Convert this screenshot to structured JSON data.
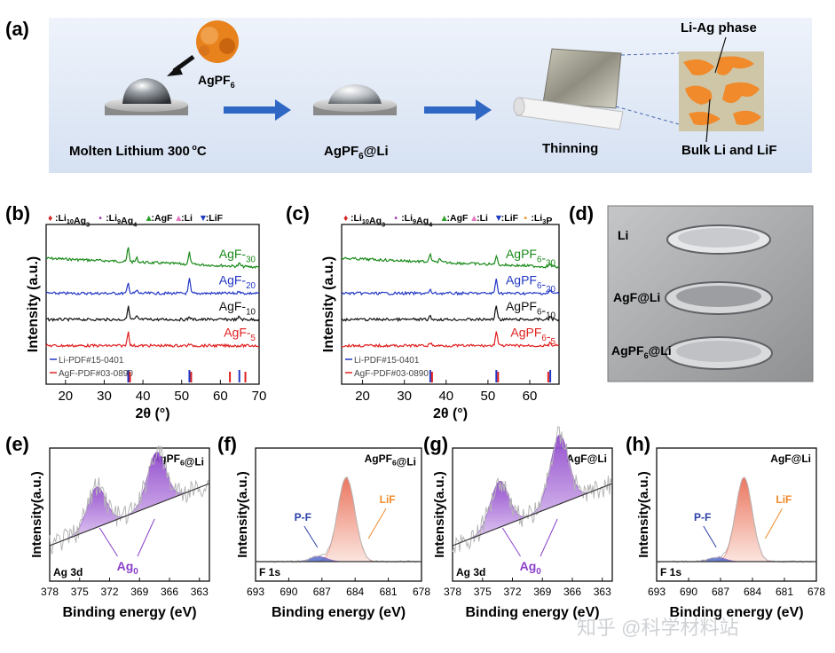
{
  "panel_a": {
    "label": "(a)",
    "powder_label": "AgPF",
    "powder_sub": "6",
    "step1": "Molten Lithium 300",
    "step1_unit": "C",
    "step2": "AgPF",
    "step2_sub": "6",
    "step2_suffix": "@Li",
    "step3": "Thinning",
    "phase_label": "Li-Ag phase",
    "bulk_label": "Bulk Li and LiF",
    "colors": {
      "bg": "#e3ebf7",
      "arrow": "#2f67c4",
      "powder": "#e8821c",
      "phase": "#f08a2a"
    }
  },
  "chart_data": [
    {
      "type": "line",
      "panel": "(b)",
      "xlabel": "2θ (°)",
      "ylabel": "Intensity (a.u.)",
      "xlim": [
        15,
        70
      ],
      "xticks": [
        20,
        30,
        40,
        50,
        60,
        70
      ],
      "legend": [
        {
          "symbol": "♦",
          "text": ":Li10Ag3",
          "color": "#d62728"
        },
        {
          "symbol": "•",
          "text": ":Li9Ag4",
          "color": "#9b2fae"
        },
        {
          "symbol": "▲",
          "text": ":AgF",
          "color": "#2ca02c"
        },
        {
          "symbol": "▲",
          "text": ":Li",
          "color": "#e377c2"
        },
        {
          "symbol": "▼",
          "text": ":LiF",
          "color": "#1f3bbf"
        }
      ],
      "series": [
        {
          "name": "AgF-30",
          "color": "#1a8a1a",
          "peaks": [
            [
              36.2,
              1.0
            ],
            [
              38.4,
              0.3
            ],
            [
              52.0,
              0.8
            ],
            [
              64.9,
              0.2
            ]
          ]
        },
        {
          "name": "AgF-20",
          "color": "#2237c4",
          "peaks": [
            [
              36.2,
              0.7
            ],
            [
              38.4,
              0.2
            ],
            [
              52.0,
              1.0
            ],
            [
              64.9,
              0.2
            ]
          ]
        },
        {
          "name": "AgF-10",
          "color": "#111111",
          "peaks": [
            [
              36.2,
              0.9
            ],
            [
              38.4,
              0.2
            ],
            [
              52.0,
              0.2
            ],
            [
              64.9,
              0.2
            ]
          ]
        },
        {
          "name": "AgF-5",
          "color": "#e02020",
          "peaks": [
            [
              36.2,
              1.0
            ],
            [
              52.0,
              0.1
            ]
          ]
        }
      ],
      "refs": [
        {
          "name": "Li-PDF#15-0401",
          "color": "#2237c4",
          "peaks": [
            36.2,
            52.0,
            64.9
          ]
        },
        {
          "name": "AgF-PDF#03-0890",
          "color": "#e02020",
          "peaks": [
            36.2,
            52.0,
            62.0,
            66.0
          ]
        }
      ]
    },
    {
      "type": "line",
      "panel": "(c)",
      "xlabel": "2θ (°)",
      "ylabel": "Intensity (a.u.)",
      "xlim": [
        15,
        67
      ],
      "xticks": [
        20,
        30,
        40,
        50,
        60
      ],
      "legend": [
        {
          "symbol": "♦",
          "text": ":Li10Ag3",
          "color": "#d62728"
        },
        {
          "symbol": "•",
          "text": ":Li9Ag4",
          "color": "#9b2fae"
        },
        {
          "symbol": "▲",
          "text": ":AgF",
          "color": "#2ca02c"
        },
        {
          "symbol": "▲",
          "text": ":Li",
          "color": "#e377c2"
        },
        {
          "symbol": "▼",
          "text": ":LiF",
          "color": "#1f3bbf"
        },
        {
          "symbol": "•",
          "text": ":Li3P",
          "color": "#f08a2a"
        }
      ],
      "series": [
        {
          "name": "AgPF6-30",
          "color": "#1a8a1a",
          "peaks": [
            [
              36.2,
              0.5
            ],
            [
              38.4,
              0.2
            ],
            [
              52.0,
              0.6
            ],
            [
              64.9,
              0.2
            ]
          ]
        },
        {
          "name": "AgPF6-20",
          "color": "#2237c4",
          "peaks": [
            [
              36.2,
              0.2
            ],
            [
              52.0,
              1.0
            ],
            [
              64.9,
              0.2
            ]
          ]
        },
        {
          "name": "AgPF6-10",
          "color": "#111111",
          "peaks": [
            [
              36.2,
              0.2
            ],
            [
              52.0,
              1.0
            ],
            [
              64.9,
              0.2
            ]
          ]
        },
        {
          "name": "AgPF6-5",
          "color": "#e02020",
          "peaks": [
            [
              36.2,
              0.2
            ],
            [
              52.0,
              1.0
            ],
            [
              64.9,
              0.2
            ]
          ]
        }
      ],
      "refs": [
        {
          "name": "Li-PDF#15-0401",
          "color": "#2237c4",
          "peaks": [
            36.2,
            52.0,
            64.9
          ]
        },
        {
          "name": "AgF-PDF#03-0890",
          "color": "#e02020",
          "peaks": [
            36.2,
            52.0,
            64.0
          ]
        }
      ]
    },
    {
      "type": "line",
      "panel": "(e)",
      "title": "AgPF6@Li",
      "corner": "Ag 3d",
      "annotation": "Ag0",
      "xlabel": "Binding energy (eV)",
      "ylabel": "Intensity(a.u.)",
      "xlim": [
        378,
        362
      ],
      "xticks": [
        378,
        375,
        372,
        369,
        366,
        363
      ],
      "peaks": [
        [
          373.3,
          0.35
        ],
        [
          367.3,
          0.45
        ]
      ]
    },
    {
      "type": "line",
      "panel": "(f)",
      "title": "AgPF6@Li",
      "corner": "F 1s",
      "annotations": [
        "P-F",
        "LiF"
      ],
      "xlabel": "Binding energy (eV)",
      "ylabel": "Intensity(a.u.)",
      "xlim": [
        693,
        678
      ],
      "xticks": [
        693,
        690,
        687,
        684,
        681,
        678
      ],
      "peaks": [
        [
          684.8,
          1.0
        ],
        [
          687.3,
          0.06
        ]
      ]
    },
    {
      "type": "line",
      "panel": "(g)",
      "title": "AgF@Li",
      "corner": "Ag 3d",
      "annotation": "Ag0",
      "xlabel": "Binding energy (eV)",
      "ylabel": "Intensity(a.u.)",
      "xlim": [
        378,
        362
      ],
      "xticks": [
        378,
        375,
        372,
        369,
        366,
        363
      ],
      "peaks": [
        [
          373.3,
          0.4
        ],
        [
          367.3,
          0.6
        ]
      ]
    },
    {
      "type": "line",
      "panel": "(h)",
      "title": "AgF@Li",
      "corner": "F 1s",
      "annotations": [
        "P-F",
        "LiF"
      ],
      "xlabel": "Binding energy (eV)",
      "ylabel": "Intensity(a.u.)",
      "xlim": [
        693,
        678
      ],
      "xticks": [
        693,
        690,
        687,
        684,
        681,
        678
      ],
      "peaks": [
        [
          684.8,
          1.0
        ],
        [
          687.3,
          0.05
        ]
      ]
    }
  ],
  "panel_b": {
    "label": "(b)"
  },
  "panel_c": {
    "label": "(c)"
  },
  "panel_d": {
    "label": "(d)",
    "row1": "Li",
    "row2": "AgF@Li",
    "row3": "AgPF",
    "row3_sub": "6",
    "row3_suffix": "@Li"
  },
  "panel_e": {
    "label": "(e)"
  },
  "panel_f": {
    "label": "(f)"
  },
  "panel_g": {
    "label": "(g)"
  },
  "panel_h": {
    "label": "(h)"
  },
  "watermark": "知乎 @科学材料站"
}
